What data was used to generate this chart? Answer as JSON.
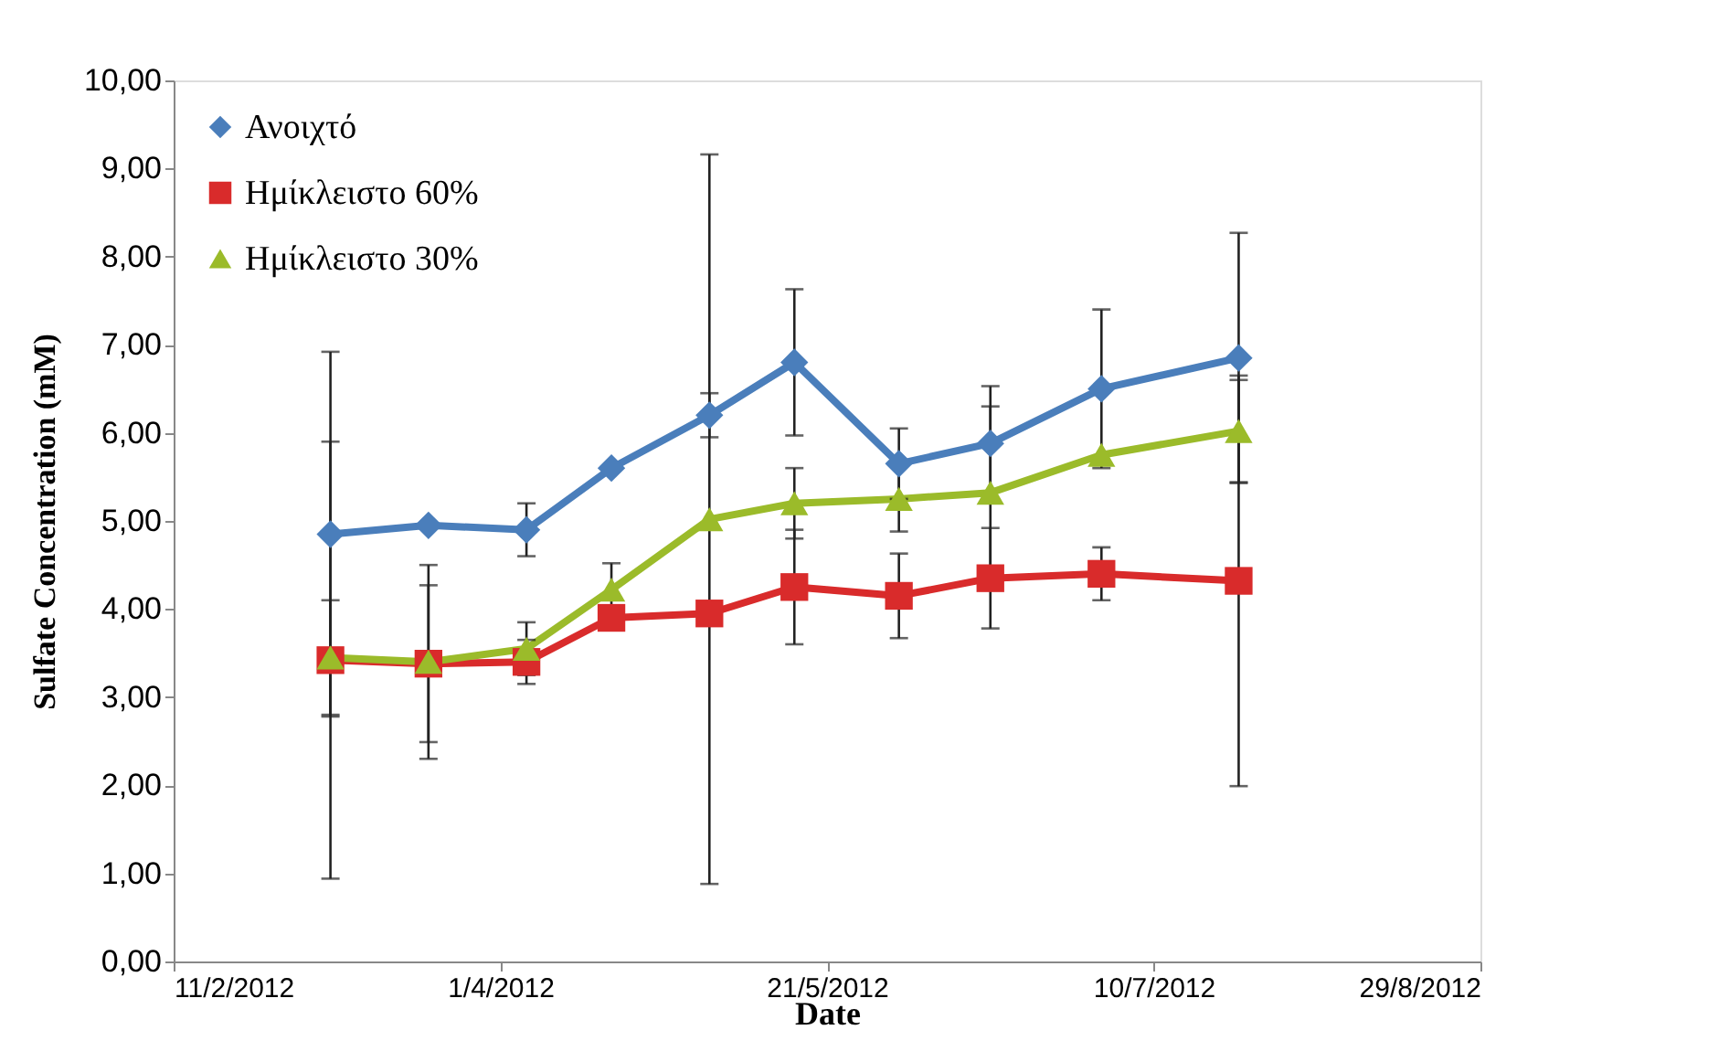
{
  "chart_data": {
    "type": "line",
    "xlabel": "Date",
    "ylabel": "Sulfate Concentration (mM)",
    "x": [
      "2012-03-06",
      "2012-03-21",
      "2012-04-05",
      "2012-04-18",
      "2012-05-03",
      "2012-05-16",
      "2012-06-01",
      "2012-06-15",
      "2012-07-02",
      "2012-07-23"
    ],
    "series": [
      {
        "name": "Ανοιχτό",
        "color": "#4a7ebb",
        "marker": "diamond",
        "values": [
          4.85,
          4.95,
          4.9,
          5.6,
          6.2,
          6.8,
          5.65,
          5.88,
          6.5,
          6.85
        ],
        "errors": [
          2.07,
          null,
          0.3,
          null,
          0.25,
          0.83,
          0.4,
          0.65,
          0.9,
          1.42
        ]
      },
      {
        "name": "Ημίκλειστο 60%",
        "color": "#d92b2b",
        "marker": "square",
        "values": [
          3.42,
          3.38,
          3.4,
          3.9,
          3.95,
          4.25,
          4.15,
          4.35,
          4.4,
          4.32
        ],
        "errors": [
          2.48,
          0.89,
          0.25,
          null,
          null,
          0.65,
          0.48,
          0.57,
          0.3,
          2.33
        ]
      },
      {
        "name": "Ημίκλειστο 30%",
        "color": "#9bbb2a",
        "marker": "triangle",
        "values": [
          3.45,
          3.4,
          3.55,
          4.22,
          5.02,
          5.2,
          5.25,
          5.32,
          5.75,
          6.02
        ],
        "errors": [
          0.65,
          1.1,
          0.3,
          0.3,
          4.14,
          0.4,
          0.37,
          0.98,
          null,
          0.58
        ]
      }
    ],
    "xlim": [
      "2012-02-11",
      "2012-08-29"
    ],
    "xticks": [
      {
        "value": "2012-02-11",
        "label": "11/2/2012"
      },
      {
        "value": "2012-04-01",
        "label": "1/4/2012"
      },
      {
        "value": "2012-05-21",
        "label": "21/5/2012"
      },
      {
        "value": "2012-07-10",
        "label": "10/7/2012"
      },
      {
        "value": "2012-08-29",
        "label": "29/8/2012"
      }
    ],
    "ylim": [
      0,
      10
    ],
    "yticks": [
      {
        "value": 0,
        "label": "0,00"
      },
      {
        "value": 1,
        "label": "1,00"
      },
      {
        "value": 2,
        "label": "2,00"
      },
      {
        "value": 3,
        "label": "3,00"
      },
      {
        "value": 4,
        "label": "4,00"
      },
      {
        "value": 5,
        "label": "5,00"
      },
      {
        "value": 6,
        "label": "6,00"
      },
      {
        "value": 7,
        "label": "7,00"
      },
      {
        "value": 8,
        "label": "8,00"
      },
      {
        "value": 9,
        "label": "9,00"
      },
      {
        "value": 10,
        "label": "10,00"
      }
    ],
    "legend": "top left",
    "grid": false,
    "line_style": "solid"
  }
}
